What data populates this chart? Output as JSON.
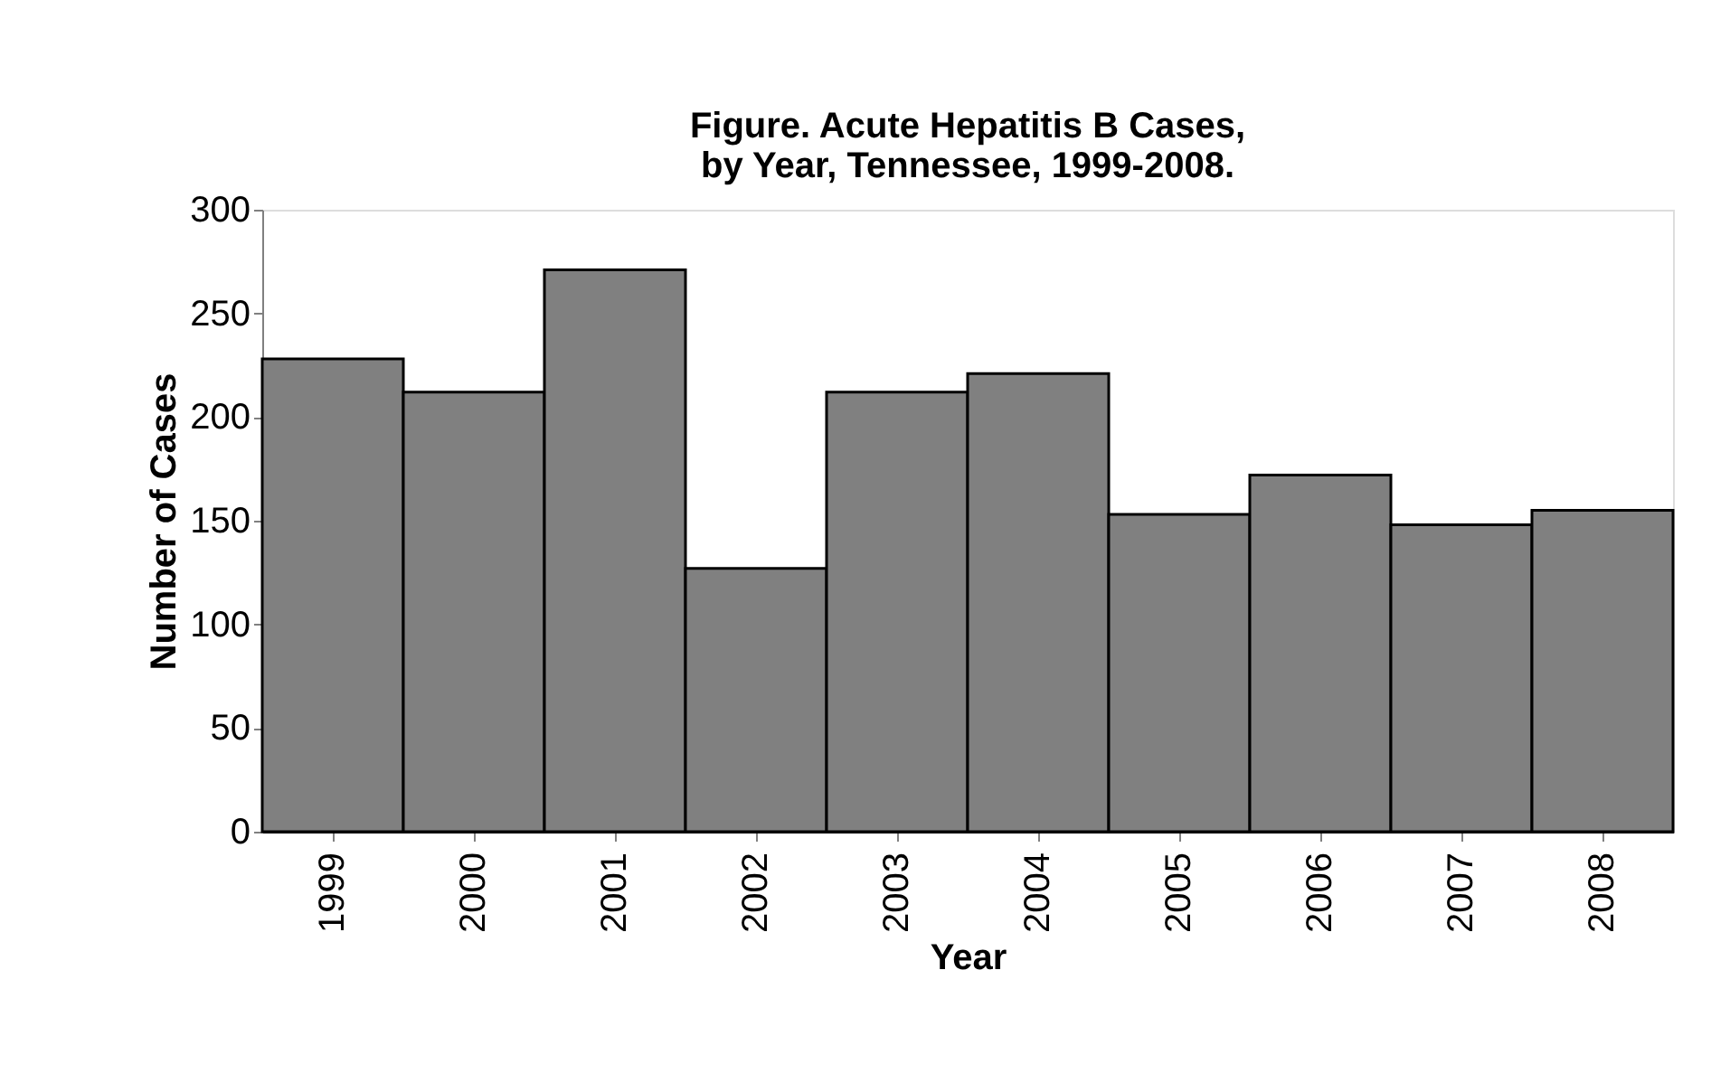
{
  "chart_data": {
    "type": "bar",
    "title": [
      "Figure. Acute Hepatitis B Cases,",
      "by Year, Tennessee, 1999-2008."
    ],
    "categories": [
      "1999",
      "2000",
      "2001",
      "2002",
      "2003",
      "2004",
      "2005",
      "2006",
      "2007",
      "2008"
    ],
    "values": [
      228,
      212,
      271,
      127,
      212,
      221,
      153,
      172,
      148,
      155
    ],
    "color": "#808080",
    "xlabel": "Year",
    "ylabel": "Number of Cases",
    "ylim": [
      0,
      300
    ],
    "yticks": [
      0,
      50,
      100,
      150,
      200,
      250,
      300
    ],
    "grid": false
  }
}
